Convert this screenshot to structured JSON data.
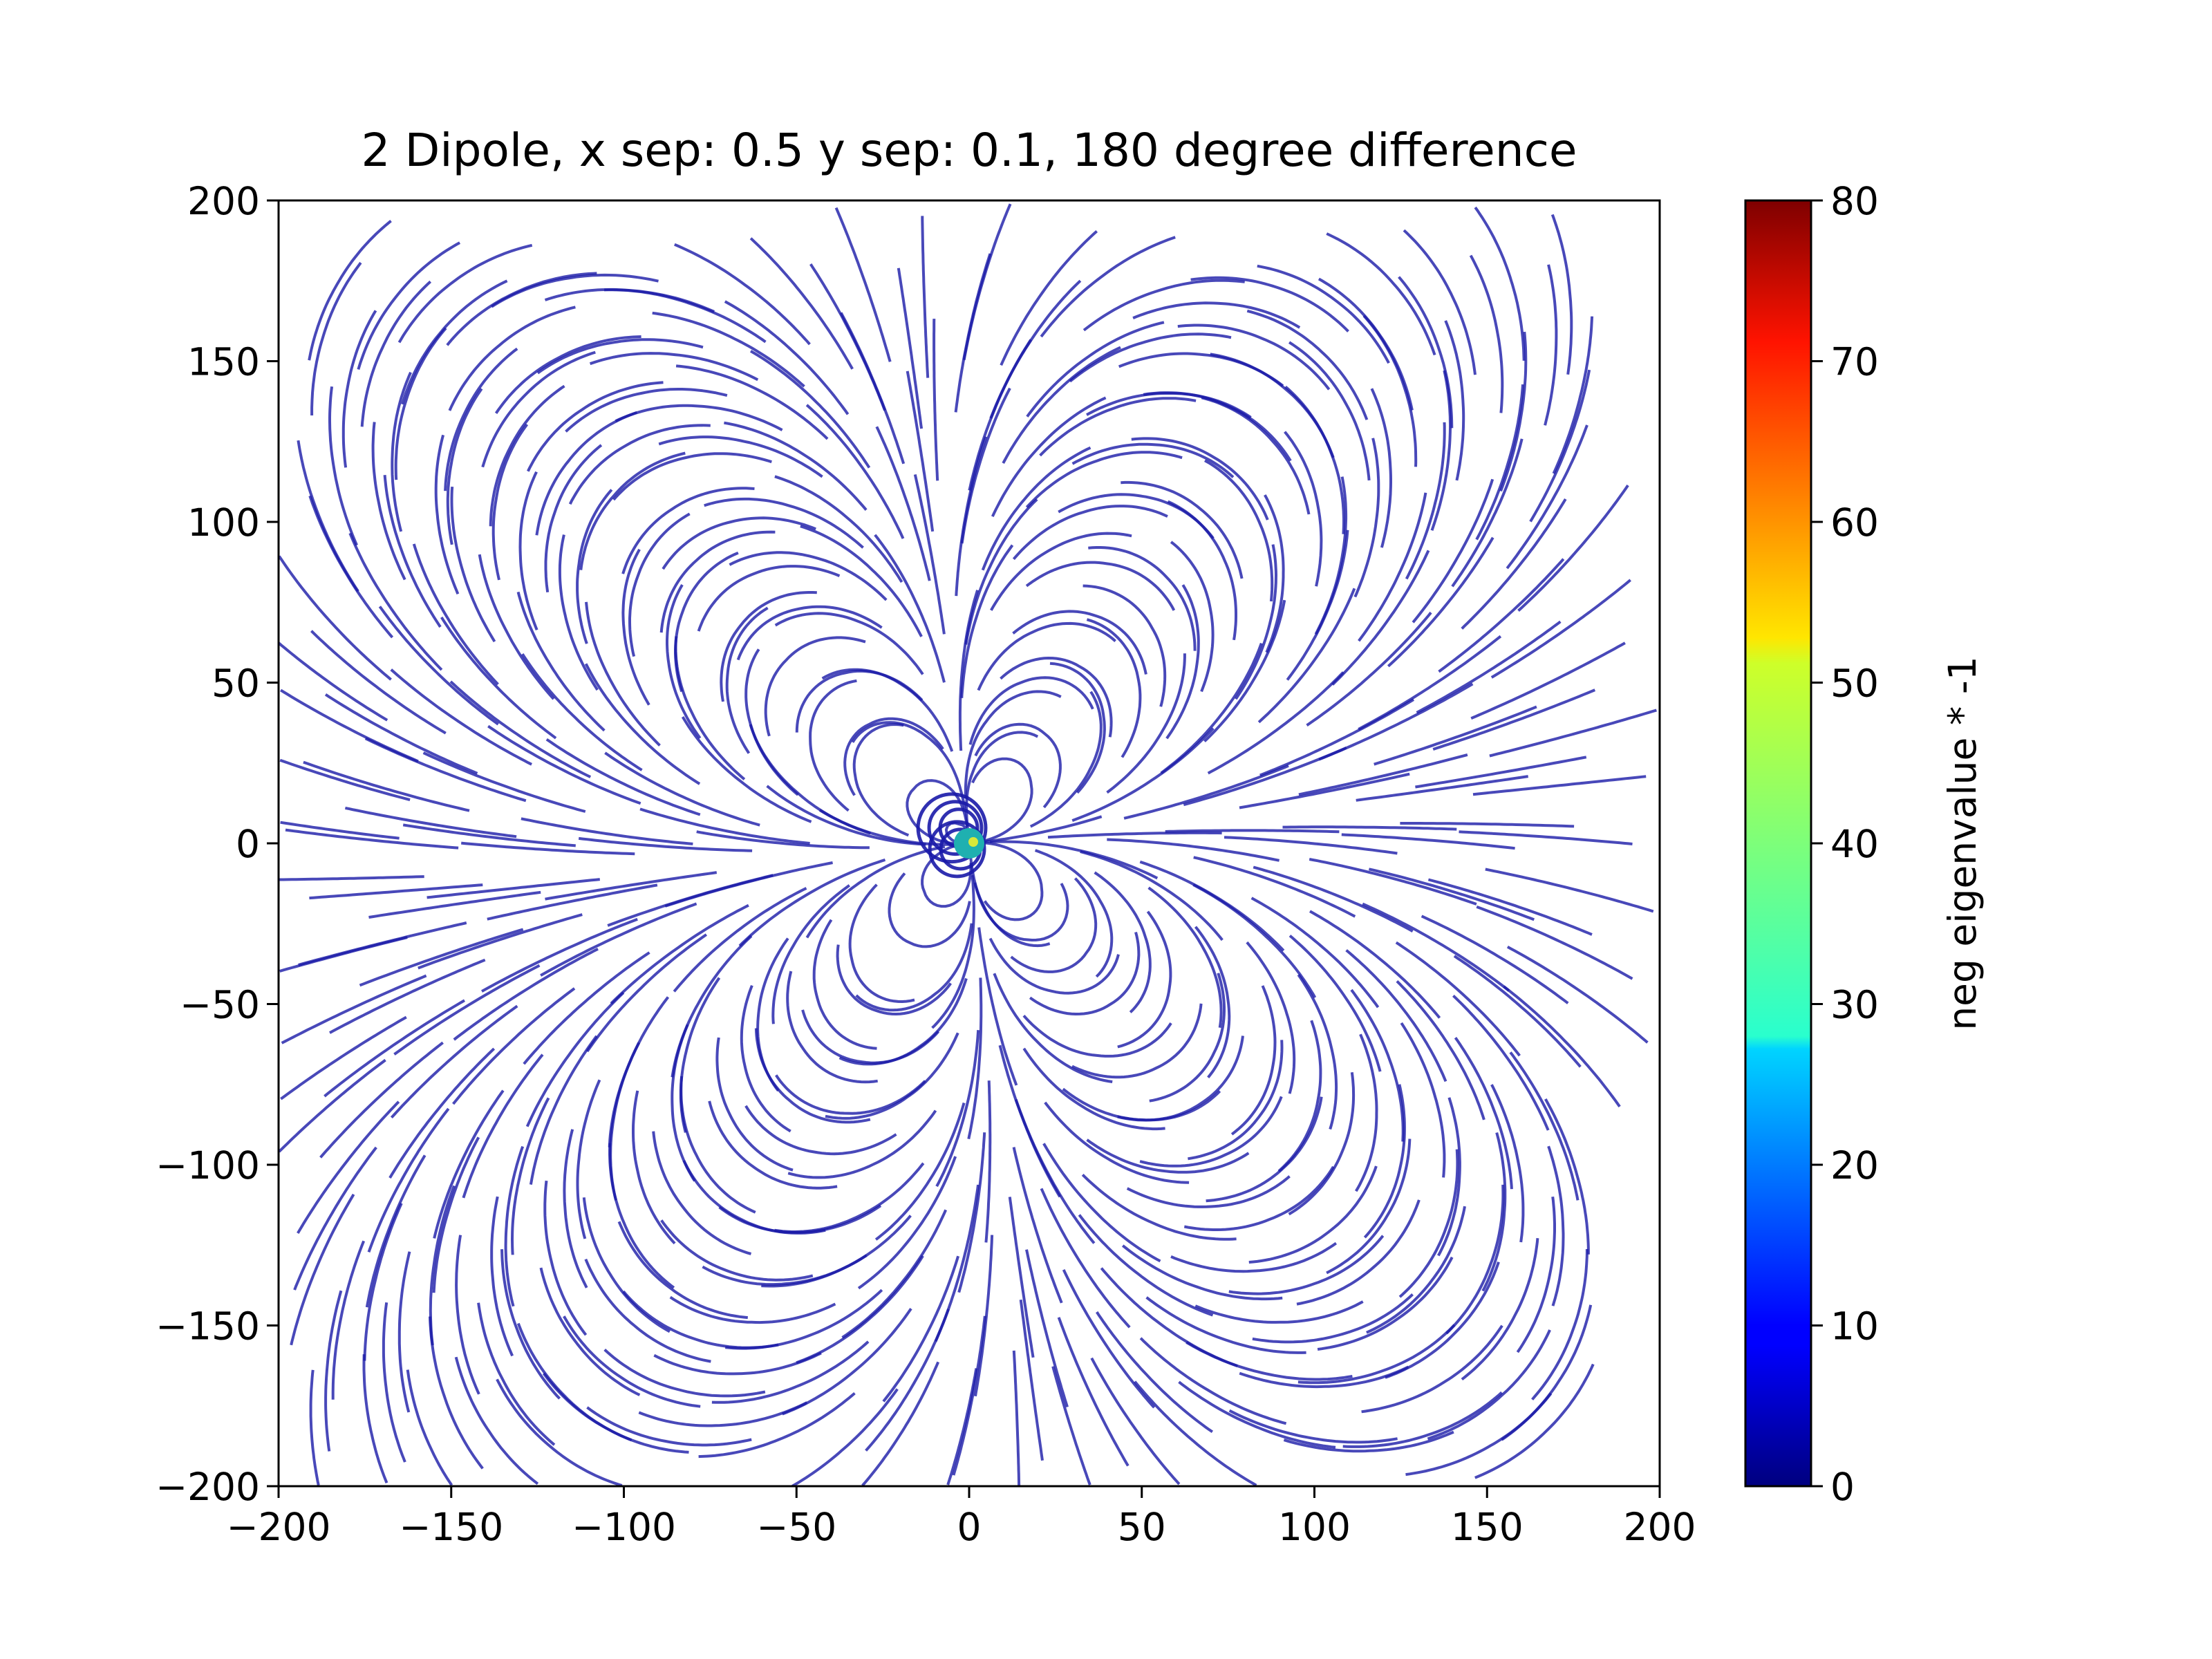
{
  "chart_data": {
    "type": "streamplot",
    "title": "2 Dipole, x sep: 0.5 y sep: 0.1, 180 degree difference",
    "xlabel": "",
    "ylabel": "",
    "xlim": [
      -200,
      200
    ],
    "ylim": [
      -200,
      200
    ],
    "xticks": [
      -200,
      -150,
      -100,
      -50,
      0,
      50,
      100,
      150,
      200
    ],
    "yticks": [
      -200,
      -150,
      -100,
      -50,
      0,
      50,
      100,
      150,
      200
    ],
    "xtick_labels": [
      "−200",
      "−150",
      "−100",
      "−50",
      "0",
      "50",
      "100",
      "150",
      "200"
    ],
    "ytick_labels": [
      "−200",
      "−150",
      "−100",
      "−50",
      "0",
      "50",
      "100",
      "150",
      "200"
    ],
    "grid": false,
    "colormap": "jet",
    "colorbar": {
      "label": "neg eigenvalue * -1",
      "range": [
        0,
        80
      ],
      "ticks": [
        0,
        10,
        20,
        30,
        40,
        50,
        60,
        70,
        80
      ],
      "tick_labels": [
        "0",
        "10",
        "20",
        "30",
        "40",
        "50",
        "60",
        "70",
        "80"
      ]
    },
    "sources": [
      {
        "x": -0.25,
        "y": -0.05,
        "angle_deg": 180
      },
      {
        "x": 0.25,
        "y": 0.05,
        "angle_deg": 0
      }
    ],
    "center_marker": {
      "x": 0,
      "y": 0,
      "color": "#1fb0b0"
    },
    "line_color": "#1a1aa8"
  }
}
